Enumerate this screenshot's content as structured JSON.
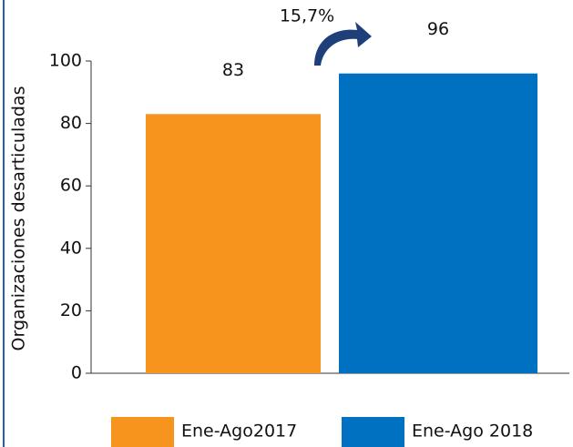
{
  "chart_data": {
    "type": "bar",
    "y_label": "Organizaciones desarticuladas",
    "annotation": "15,7%",
    "categories": [
      null
    ],
    "series": [
      {
        "name": "Ene-Ago2017",
        "color": "#f7941d",
        "values": [
          83
        ]
      },
      {
        "name": "Ene-Ago 2018",
        "color": "#0070c0",
        "values": [
          96
        ]
      }
    ],
    "ylim": [
      0,
      100
    ],
    "yticks": [
      0,
      20,
      40,
      60,
      80,
      100
    ],
    "legend": "bottom"
  }
}
